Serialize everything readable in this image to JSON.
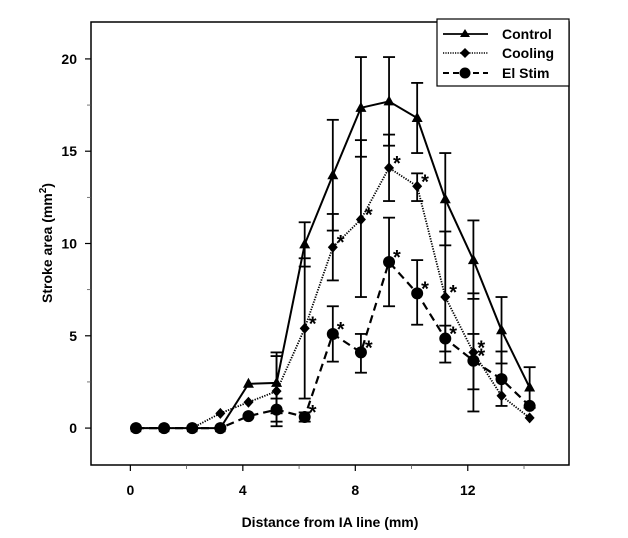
{
  "chart_data": {
    "type": "line",
    "title": "",
    "xlabel": "Distance from IA line (mm)",
    "ylabel_main": "Stroke area (mm",
    "ylabel_sup": "2",
    "ylabel_close": ")",
    "ylabel": "Stroke area (mm²)",
    "xlim": [
      -1.4,
      15.6
    ],
    "ylim": [
      -2,
      22
    ],
    "xticks": [
      0,
      4,
      8,
      12
    ],
    "xtick_labels": [
      "0",
      "4",
      "8",
      "12"
    ],
    "xminor_ticks": [
      2,
      6,
      10,
      14
    ],
    "yticks": [
      0,
      5,
      10,
      15,
      20
    ],
    "ytick_labels": [
      "0",
      "5",
      "10",
      "15",
      "20"
    ],
    "yminor_ticks": [
      2.5,
      7.5,
      12.5,
      17.5
    ],
    "grid": false,
    "legend_position": "top-right",
    "x": [
      0.2,
      1.2,
      2.2,
      3.2,
      4.2,
      5.2,
      6.2,
      7.2,
      8.2,
      9.2,
      10.2,
      11.2,
      12.2,
      13.2,
      14.2
    ],
    "series": [
      {
        "name": "Control",
        "marker": "triangle",
        "line": "solid",
        "values": [
          0,
          0,
          0,
          0,
          2.4,
          2.45,
          9.95,
          13.7,
          17.35,
          17.7,
          16.8,
          12.4,
          9.1,
          5.3,
          2.2
        ],
        "err_upper": [
          0,
          0,
          0,
          0,
          0,
          1.65,
          1.2,
          3.0,
          2.75,
          2.4,
          1.9,
          2.5,
          2.15,
          1.8,
          1.1
        ],
        "err_lower": [
          0,
          0,
          0,
          0,
          0,
          1.65,
          1.2,
          3.0,
          2.65,
          2.4,
          1.9,
          2.5,
          2.1,
          1.8,
          1.1
        ],
        "significant": [
          false,
          false,
          false,
          false,
          false,
          false,
          false,
          false,
          false,
          false,
          false,
          false,
          false,
          false,
          false
        ]
      },
      {
        "name": "Cooling",
        "marker": "diamond",
        "line": "dotted",
        "values": [
          0,
          0,
          0,
          0.8,
          1.4,
          2.0,
          5.4,
          9.8,
          11.3,
          14.1,
          13.1,
          7.1,
          4.1,
          1.75,
          0.55
        ],
        "err_upper": [
          0,
          0,
          0,
          0,
          0,
          1.9,
          3.8,
          1.8,
          4.3,
          1.8,
          0.7,
          3.55,
          3.2,
          0,
          0
        ],
        "err_lower": [
          0,
          0,
          0,
          0,
          0,
          1.9,
          3.8,
          1.8,
          4.2,
          1.8,
          0.8,
          3.55,
          3.2,
          0,
          0
        ],
        "significant": [
          false,
          false,
          false,
          false,
          false,
          false,
          true,
          true,
          true,
          true,
          true,
          true,
          true,
          false,
          false
        ]
      },
      {
        "name": "El Stim",
        "marker": "circle",
        "line": "dashed",
        "values": [
          0,
          0,
          0,
          0,
          0.65,
          1.0,
          0.6,
          5.1,
          4.1,
          9.0,
          7.3,
          4.85,
          3.65,
          2.65,
          1.2
        ],
        "err_upper": [
          0,
          0,
          0,
          0,
          0,
          0.6,
          0.25,
          1.5,
          1.0,
          2.4,
          1.8,
          0.7,
          1.45,
          1.5,
          0
        ],
        "err_lower": [
          0,
          0,
          0,
          0,
          0,
          0.65,
          0.25,
          1.5,
          1.1,
          2.4,
          1.7,
          0.7,
          1.55,
          1.45,
          0
        ],
        "significant": [
          false,
          false,
          false,
          false,
          false,
          false,
          true,
          true,
          true,
          true,
          true,
          true,
          true,
          false,
          false
        ]
      }
    ],
    "significance_marker": "*"
  }
}
